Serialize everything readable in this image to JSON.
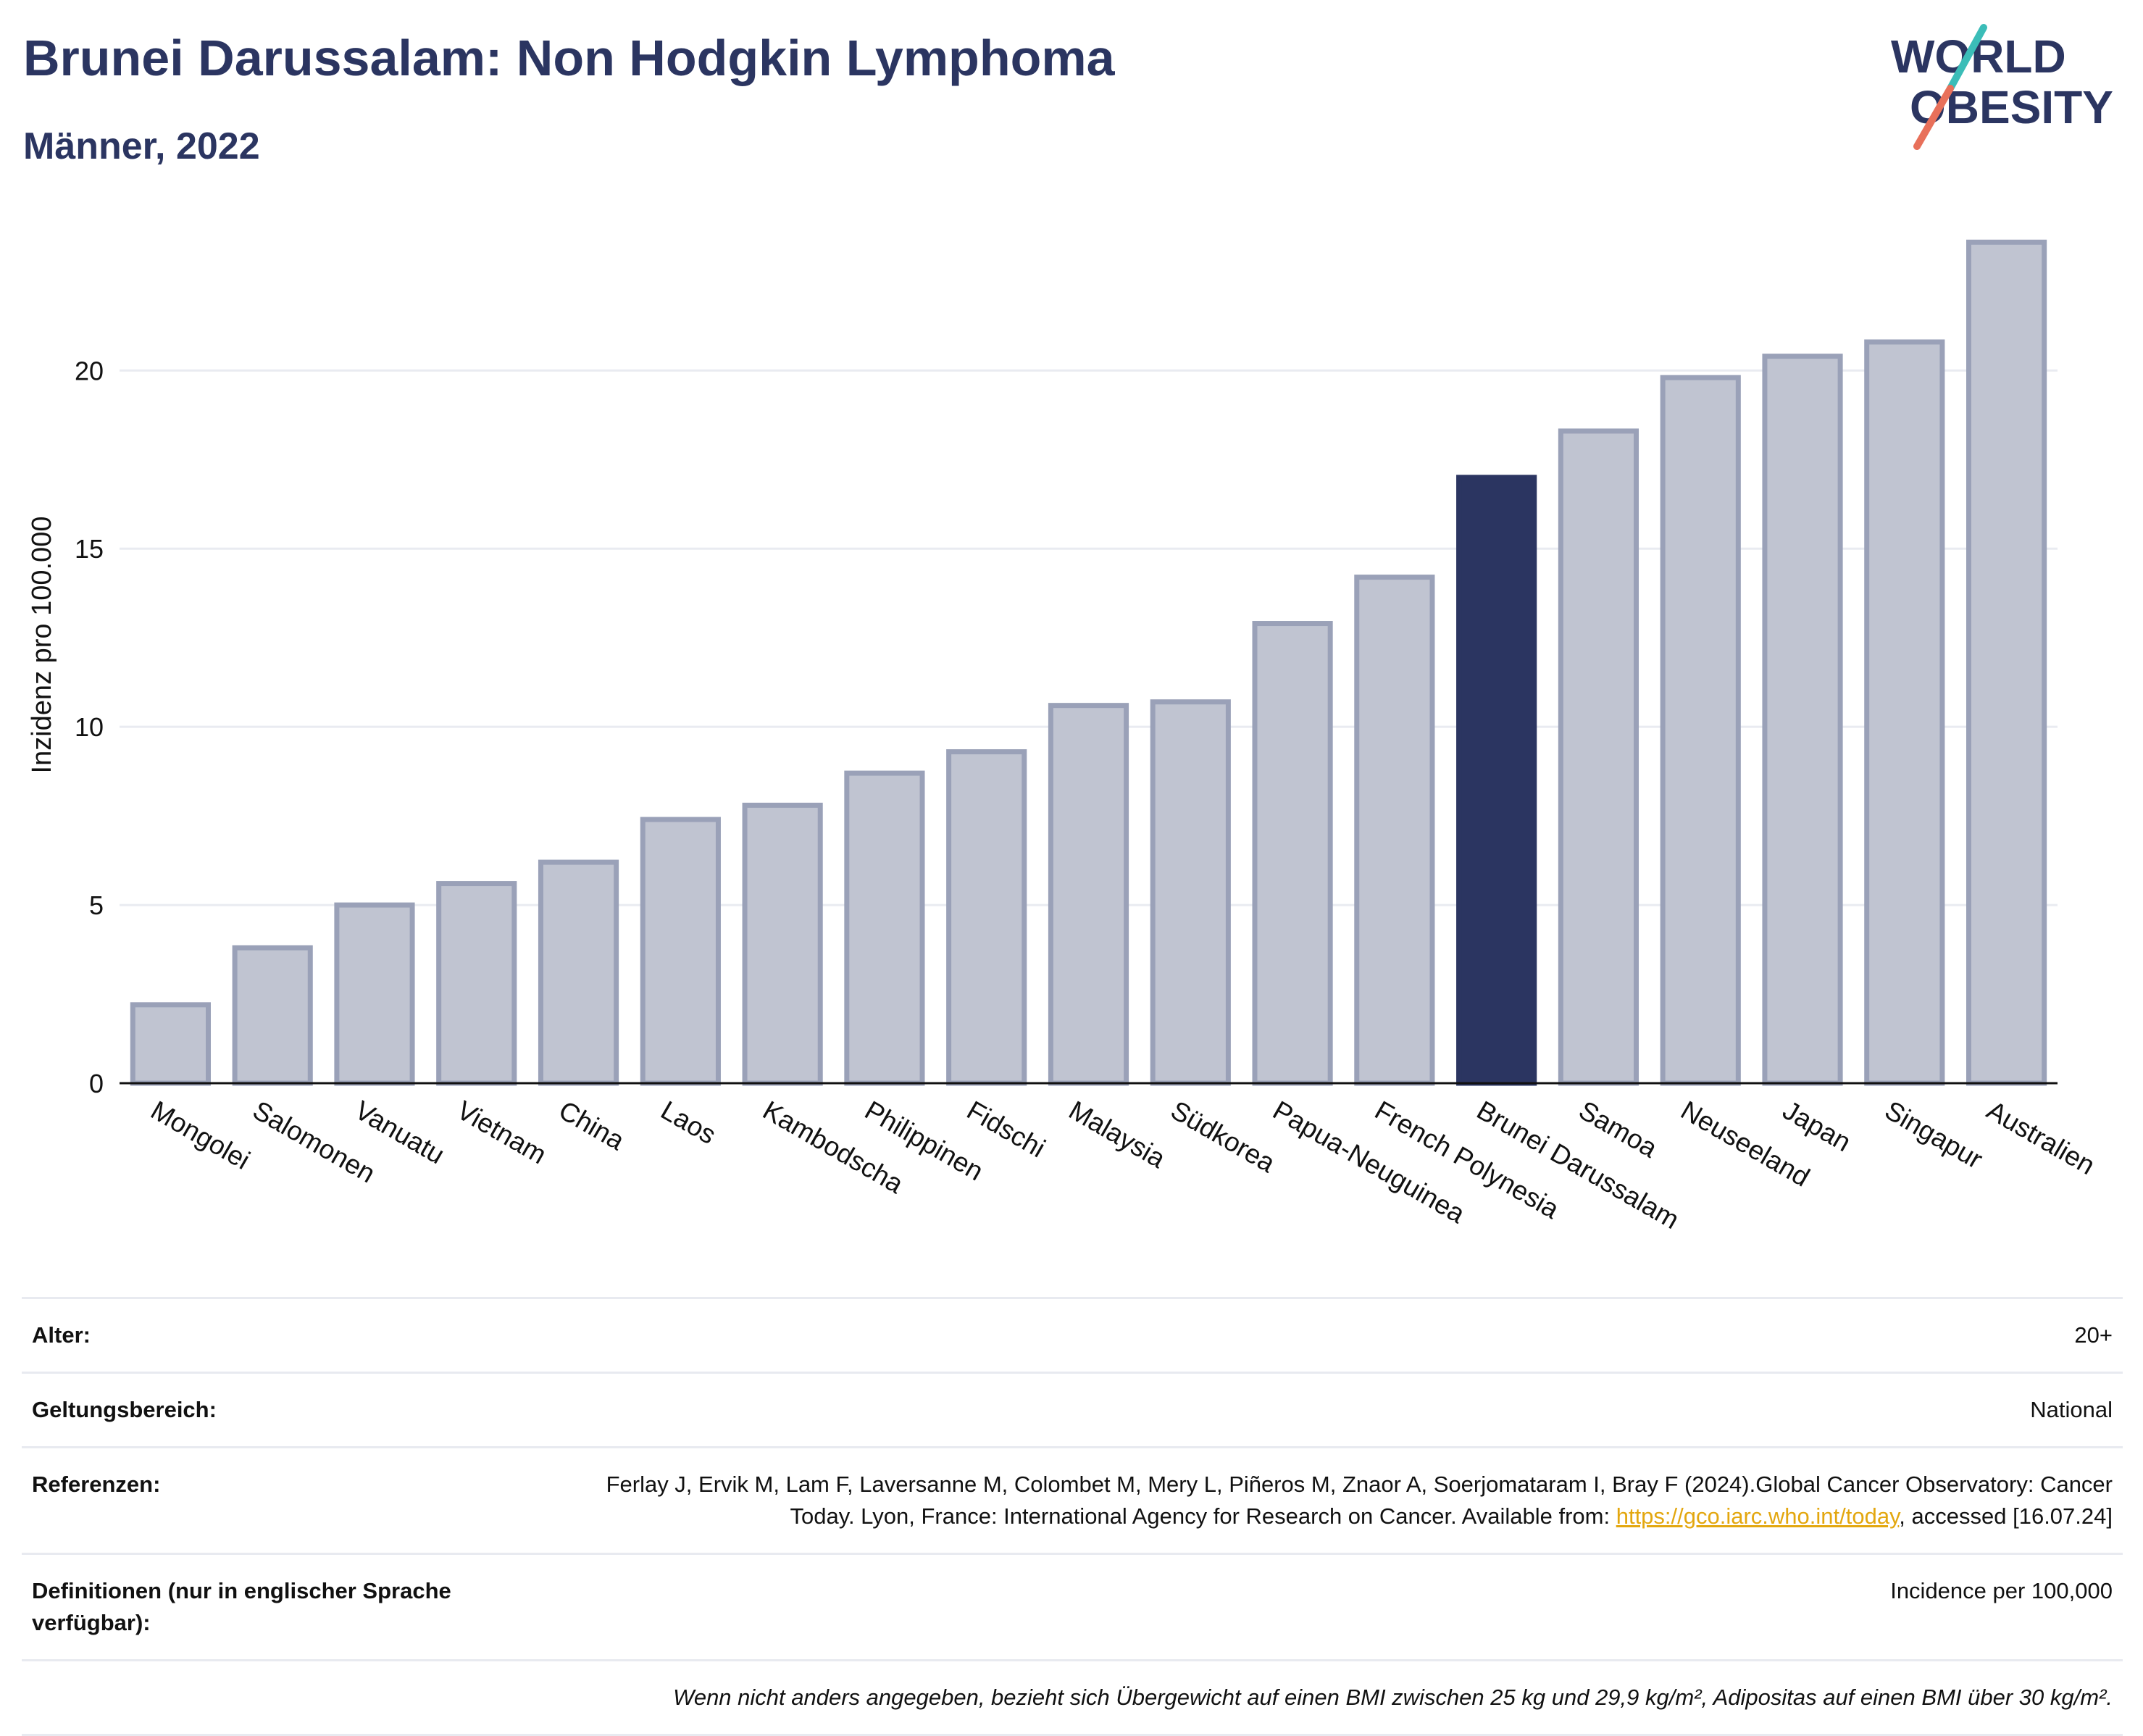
{
  "header": {
    "title": "Brunei Darussalam: Non Hodgkin Lymphoma",
    "subtitle": "Männer, 2022"
  },
  "logo": {
    "line1": "WORLD",
    "line2": "OBESITY",
    "icon": "world-obesity-logo"
  },
  "chart_data": {
    "type": "bar",
    "title": "Brunei Darussalam: Non Hodgkin Lymphoma",
    "subtitle": "Männer, 2022",
    "ylabel": "Inzidenz pro 100.000",
    "xlabel": "",
    "ylim": [
      0,
      24.5
    ],
    "yticks": [
      0,
      5,
      10,
      15,
      20
    ],
    "grid": true,
    "highlight": "Brunei Darussalam",
    "colors": {
      "bar": "#c0c4d1",
      "bar_border": "#9aa1b8",
      "highlight": "#2b3561"
    },
    "categories": [
      "Mongolei",
      "Salomonen",
      "Vanuatu",
      "Vietnam",
      "China",
      "Laos",
      "Kambodscha",
      "Philippinen",
      "Fidschi",
      "Malaysia",
      "Südkorea",
      "Papua-Neuguinea",
      "French Polynesia",
      "Brunei Darussalam",
      "Samoa",
      "Neuseeland",
      "Japan",
      "Singapur",
      "Australien"
    ],
    "values": [
      2.2,
      3.8,
      5.0,
      5.6,
      6.2,
      7.4,
      7.8,
      8.7,
      9.3,
      10.6,
      10.7,
      12.9,
      14.2,
      17.0,
      18.3,
      19.8,
      20.4,
      20.8,
      23.6
    ]
  },
  "info": {
    "rows": [
      {
        "key": "Alter:",
        "value": "20+"
      },
      {
        "key": "Geltungsbereich:",
        "value": "National"
      },
      {
        "key": "Referenzen:",
        "value_pre": "Ferlay J, Ervik M, Lam F, Laversanne M, Colombet M, Mery L, Piñeros M, Znaor A, Soerjomataram I, Bray F (2024).Global Cancer Observatory: Cancer Today. Lyon, France: International Agency for Research on Cancer. Available from: ",
        "link": "https://gco.iarc.who.int/today",
        "value_post": ", accessed [16.07.24]"
      },
      {
        "key": "Definitionen (nur in englischer Sprache verfügbar):",
        "value": "Incidence per 100,000"
      }
    ],
    "note": "Wenn nicht anders angegeben, bezieht sich Übergewicht auf einen BMI zwischen 25 kg und 29,9 kg/m², Adipositas auf einen BMI über 30 kg/m²."
  }
}
